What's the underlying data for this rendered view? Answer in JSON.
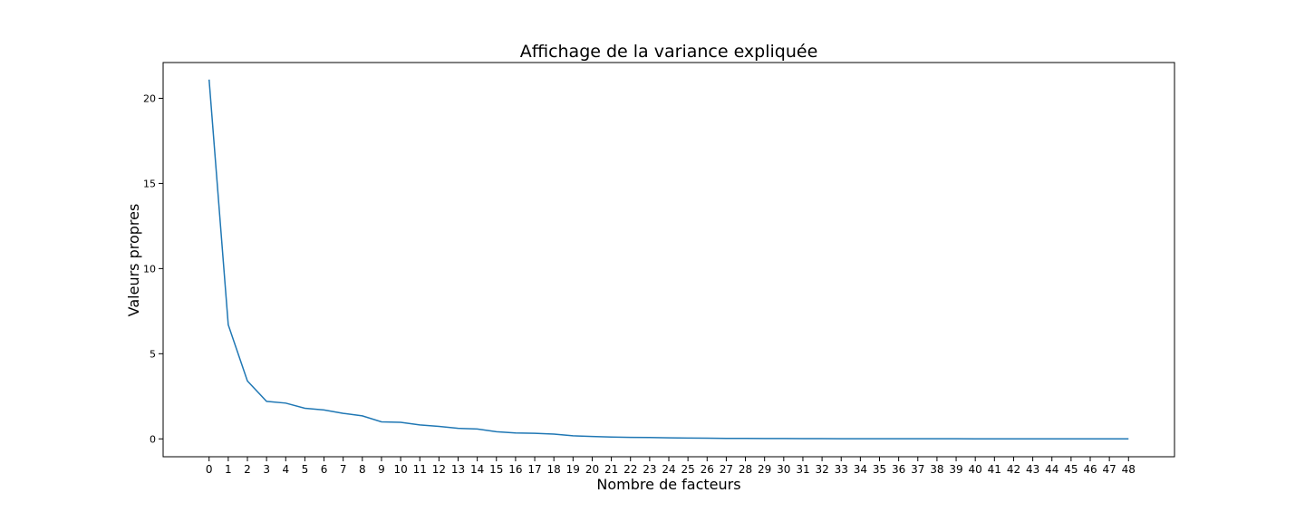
{
  "chart_data": {
    "type": "line",
    "title": "Affichage de la variance expliquée",
    "xlabel": "Nombre de facteurs",
    "ylabel": "Valeurs propres",
    "x": [
      0,
      1,
      2,
      3,
      4,
      5,
      6,
      7,
      8,
      9,
      10,
      11,
      12,
      13,
      14,
      15,
      16,
      17,
      18,
      19,
      20,
      21,
      22,
      23,
      24,
      25,
      26,
      27,
      28,
      29,
      30,
      31,
      32,
      33,
      34,
      35,
      36,
      37,
      38,
      39,
      40,
      41,
      42,
      43,
      44,
      45,
      46,
      47,
      48
    ],
    "x_ticks": [
      "0",
      "1",
      "2",
      "3",
      "4",
      "5",
      "6",
      "7",
      "8",
      "9",
      "10",
      "11",
      "12",
      "13",
      "14",
      "15",
      "16",
      "17",
      "18",
      "19",
      "20",
      "21",
      "22",
      "23",
      "24",
      "25",
      "26",
      "27",
      "28",
      "29",
      "30",
      "31",
      "32",
      "33",
      "34",
      "35",
      "36",
      "37",
      "38",
      "39",
      "40",
      "41",
      "42",
      "43",
      "44",
      "45",
      "46",
      "47",
      "48"
    ],
    "y_ticks": [
      "0",
      "5",
      "10",
      "15",
      "20"
    ],
    "xlim": [
      -2.4,
      50.4
    ],
    "ylim": [
      -1.05,
      22.1
    ],
    "series": [
      {
        "values": [
          21.1,
          6.7,
          3.4,
          2.2,
          2.1,
          1.8,
          1.7,
          1.5,
          1.35,
          1.0,
          0.97,
          0.82,
          0.73,
          0.62,
          0.58,
          0.42,
          0.35,
          0.33,
          0.28,
          0.18,
          0.14,
          0.11,
          0.09,
          0.08,
          0.06,
          0.05,
          0.04,
          0.03,
          0.025,
          0.02,
          0.018,
          0.015,
          0.012,
          0.01,
          0.009,
          0.008,
          0.007,
          0.006,
          0.005,
          0.005,
          0.004,
          0.004,
          0.003,
          0.003,
          0.002,
          0.002,
          0.002,
          0.001,
          0.001
        ],
        "color": "#1f77b4"
      }
    ],
    "grid": false,
    "legend": "none"
  }
}
